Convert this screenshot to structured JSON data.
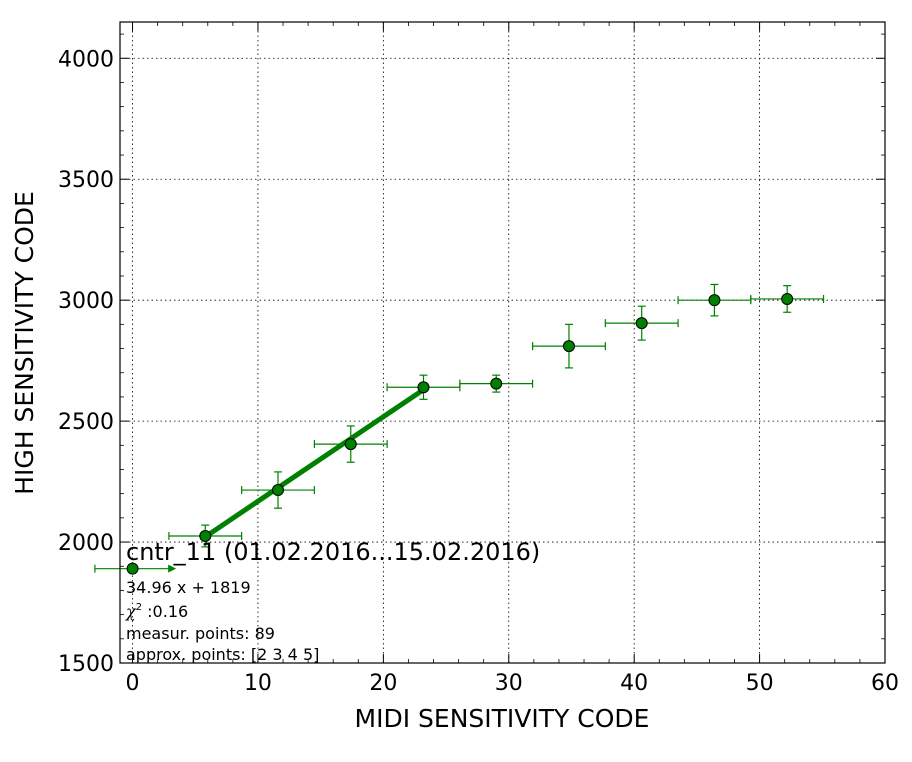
{
  "chart_data": {
    "type": "scatter",
    "title": "",
    "xlabel": "MIDI SENSITIVITY CODE",
    "ylabel": "HIGH SENSITIVITY CODE",
    "xlim": [
      -1,
      60
    ],
    "ylim": [
      1500,
      4150
    ],
    "x_ticks": [
      0,
      10,
      20,
      30,
      40,
      50,
      60
    ],
    "y_ticks": [
      1500,
      2000,
      2500,
      3000,
      3500,
      4000
    ],
    "grid": true,
    "color": "#008000",
    "series": [
      {
        "points": [
          {
            "x": 0.0,
            "y": 1890,
            "xerr": 3.0,
            "yerr": 0
          },
          {
            "x": 5.8,
            "y": 2025,
            "xerr": 2.9,
            "yerr": 45
          },
          {
            "x": 11.6,
            "y": 2215,
            "xerr": 2.9,
            "yerr": 75
          },
          {
            "x": 17.4,
            "y": 2405,
            "xerr": 2.9,
            "yerr": 75
          },
          {
            "x": 23.2,
            "y": 2640,
            "xerr": 2.9,
            "yerr": 50
          },
          {
            "x": 29.0,
            "y": 2655,
            "xerr": 2.9,
            "yerr": 35
          },
          {
            "x": 34.8,
            "y": 2810,
            "xerr": 2.9,
            "yerr": 90
          },
          {
            "x": 40.6,
            "y": 2905,
            "xerr": 2.9,
            "yerr": 70
          },
          {
            "x": 46.4,
            "y": 3000,
            "xerr": 2.9,
            "yerr": 65
          },
          {
            "x": 52.2,
            "y": 3005,
            "xerr": 2.9,
            "yerr": 55
          }
        ]
      }
    ],
    "fit_line": {
      "slope": 34.96,
      "intercept": 1819,
      "x_range": [
        5.8,
        23.2
      ]
    },
    "annotation": {
      "title": "cntr_11 (01.02.2016...15.02.2016)",
      "equation": "34.96 x + 1819",
      "chi_label": "χ",
      "chi_sup": "2",
      "chi_value": " :0.16",
      "measur": "measur. points: 89",
      "approx": "approx. points: [2 3 4 5]"
    }
  }
}
